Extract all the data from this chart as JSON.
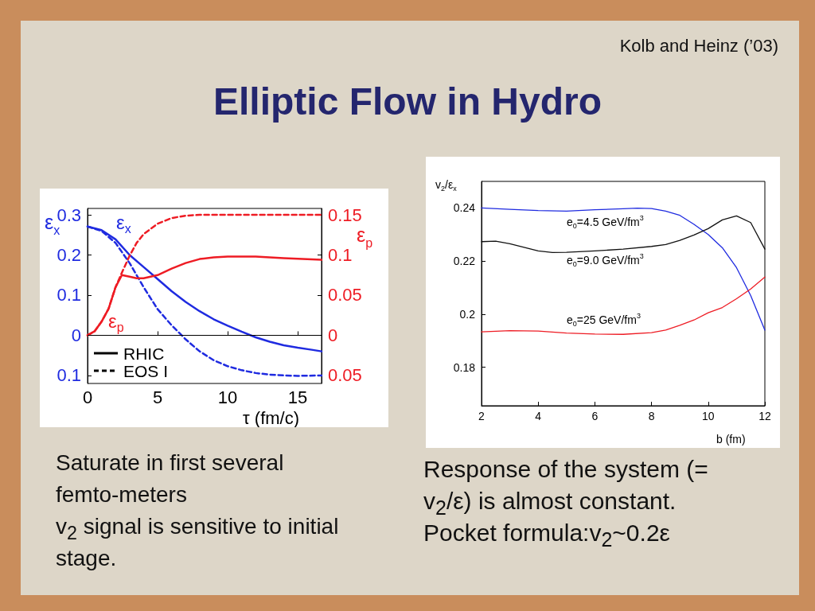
{
  "chart_data": [
    {
      "type": "line",
      "title": "Elliptic Flow in Hydro",
      "xlabel": "τ (fm/c)",
      "ylabel": "ε$_{x}$",
      "y2label": "ε$_{p}$",
      "annotations": [
        "Saturate in first several femto-meters",
        "v$_{2}$ signal is sensitive to initial stage.",
        "ε$_{x}$",
        "ε$_{p}$",
        "RHIC",
        "EOS I"
      ],
      "series": [
        {
          "color": "#1f2be0",
          "axis": "y",
          "line_style": "solid",
          "x": [
            0,
            1,
            2,
            3,
            4,
            5,
            6,
            7,
            8,
            9,
            10,
            11,
            12,
            13,
            14,
            15,
            16,
            16.7
          ],
          "values": [
            0.271,
            0.262,
            0.239,
            0.2,
            0.17,
            0.14,
            0.11,
            0.083,
            0.06,
            0.04,
            0.024,
            0.009,
            -0.005,
            -0.016,
            -0.025,
            -0.031,
            -0.036,
            -0.04
          ]
        },
        {
          "color": "#1f2be0",
          "axis": "y",
          "line_style": "dashed",
          "x": [
            0,
            1,
            2,
            3,
            4,
            5,
            6,
            7,
            8,
            9,
            10,
            11,
            12,
            13,
            14,
            15,
            16.7
          ],
          "values": [
            0.271,
            0.26,
            0.23,
            0.18,
            0.12,
            0.065,
            0.025,
            -0.01,
            -0.04,
            -0.062,
            -0.077,
            -0.087,
            -0.094,
            -0.098,
            -0.1,
            -0.101,
            -0.1
          ]
        },
        {
          "color": "#ee1c24",
          "axis": "y2",
          "line_style": "solid",
          "x": [
            0,
            0.5,
            1,
            1.5,
            2,
            2.45,
            3,
            3.5,
            4,
            5,
            6,
            7,
            8,
            9,
            10,
            12,
            14,
            16.7
          ],
          "values": [
            0,
            0.005,
            0.017,
            0.033,
            0.06,
            0.075,
            0.073,
            0.071,
            0.071,
            0.075,
            0.083,
            0.09,
            0.095,
            0.097,
            0.098,
            0.098,
            0.096,
            0.094
          ]
        },
        {
          "color": "#ee1c24",
          "axis": "y2",
          "line_style": "dashed",
          "x": [
            0,
            0.5,
            1,
            1.5,
            2,
            2.5,
            3,
            3.5,
            4,
            5,
            6,
            7,
            8,
            10,
            16.7
          ],
          "values": [
            0,
            0.005,
            0.017,
            0.033,
            0.06,
            0.08,
            0.099,
            0.115,
            0.126,
            0.139,
            0.146,
            0.149,
            0.15,
            0.15,
            0.15
          ]
        }
      ],
      "xlim": [
        0,
        16.7
      ],
      "xticks": [
        0,
        5,
        10,
        15
      ],
      "ylim": [
        -0.12,
        0.316
      ],
      "yticks": [
        {
          "value": -0.1,
          "label": "0.1"
        },
        0,
        0.1,
        0.2,
        0.3
      ],
      "y2lim": [
        -0.06,
        0.158
      ],
      "y2ticks": [
        {
          "value": -0.05,
          "label": "0.05"
        },
        0,
        0.05,
        0.1,
        0.15
      ],
      "ref_lines": [
        {
          "axis": "y",
          "value": 0,
          "color": "#000000"
        }
      ],
      "marker": "none",
      "grid": false
    },
    {
      "type": "line",
      "subtitle": "Kolb and Heinz (’03)",
      "xlabel": "b (fm)",
      "ylabel": "v$_{2}$/ε$_{x}$",
      "annotations": [
        "Response of the system (= v$_{2}$/ε) is almost constant.",
        "Pocket formula:v$_{2}$~0.2ε",
        "e$_{0}$=4.5 GeV/fm$^{3}$",
        "e$_{0}$=9.0 GeV/fm$^{3}$",
        "e$_{0}$=25 GeV/fm$^{3}$"
      ],
      "series": [
        {
          "color": "#1f2be0",
          "x": [
            2,
            3,
            4,
            5,
            6,
            7,
            7.5,
            8,
            8.5,
            9,
            9.5,
            10,
            10.5,
            11,
            11.5,
            12
          ],
          "values": [
            0.24,
            0.2395,
            0.239,
            0.2388,
            0.2393,
            0.2397,
            0.2399,
            0.2398,
            0.2388,
            0.2372,
            0.2338,
            0.23,
            0.225,
            0.2175,
            0.207,
            0.194
          ]
        },
        {
          "color": "#111111",
          "x": [
            2,
            2.5,
            3,
            4,
            4.5,
            5,
            6,
            7,
            8,
            8.5,
            9,
            9.5,
            10,
            10.5,
            11,
            11.5,
            12
          ],
          "values": [
            0.2273,
            0.2275,
            0.2265,
            0.2238,
            0.2232,
            0.2233,
            0.2238,
            0.2245,
            0.2255,
            0.2262,
            0.2278,
            0.2298,
            0.2322,
            0.2355,
            0.237,
            0.2345,
            0.2245
          ]
        },
        {
          "color": "#ee1c24",
          "x": [
            2,
            3,
            4,
            5,
            6,
            7,
            8,
            8.5,
            9,
            9.5,
            10,
            10.5,
            11,
            11.5,
            12
          ],
          "values": [
            0.1933,
            0.1938,
            0.1936,
            0.1929,
            0.1925,
            0.1924,
            0.193,
            0.194,
            0.1958,
            0.1978,
            0.2005,
            0.2025,
            0.2058,
            0.2095,
            0.214
          ]
        }
      ],
      "xlim": [
        2,
        12
      ],
      "xticks": [
        2,
        4,
        6,
        8,
        10,
        12
      ],
      "ylim": [
        0.1655,
        0.25
      ],
      "yticks": [
        0.18,
        0.2,
        0.22,
        0.24
      ],
      "marker": "none",
      "grid": false
    }
  ]
}
